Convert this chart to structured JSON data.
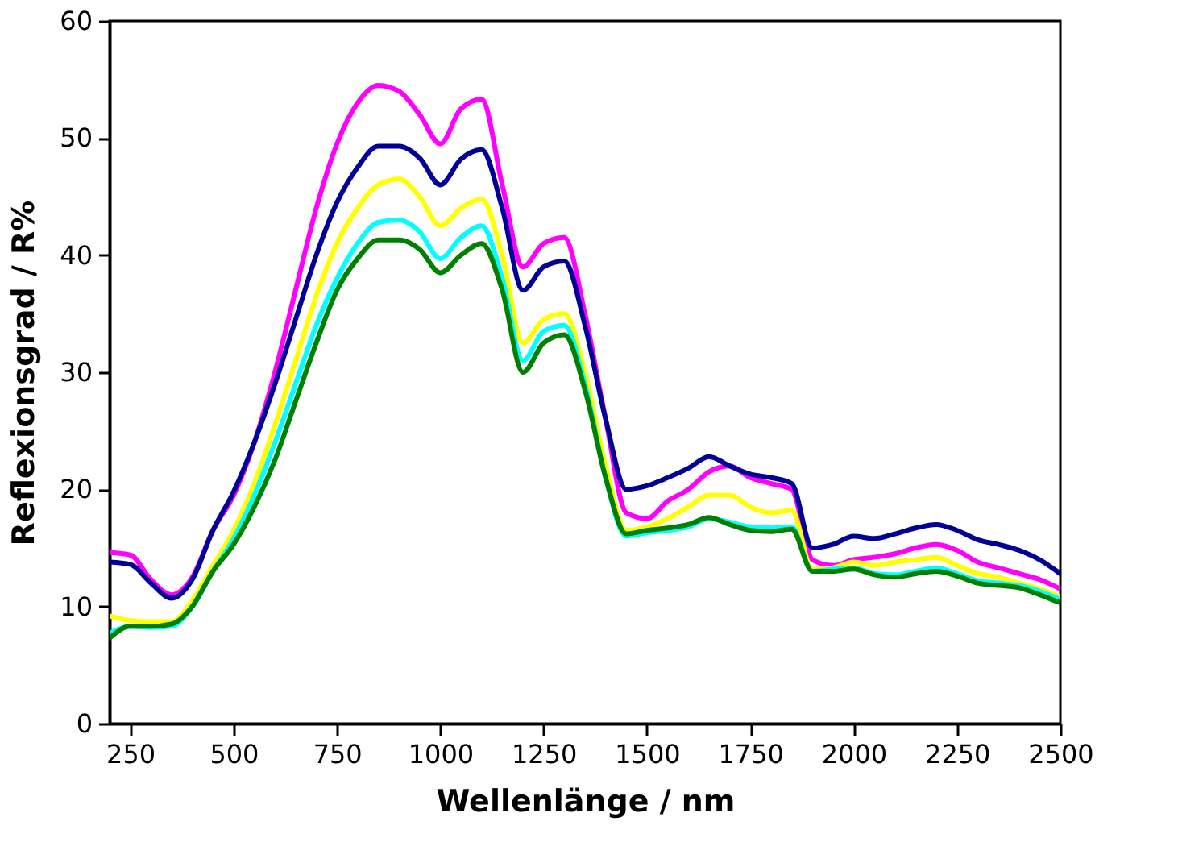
{
  "chart_data": {
    "type": "line",
    "xlabel": "Wellenlänge / nm",
    "ylabel": "Reflexionsgrad / R%",
    "x": [
      200,
      250,
      300,
      350,
      400,
      450,
      500,
      550,
      600,
      650,
      700,
      750,
      800,
      850,
      900,
      950,
      1000,
      1050,
      1100,
      1150,
      1200,
      1250,
      1300,
      1350,
      1400,
      1450,
      1500,
      1550,
      1600,
      1650,
      1700,
      1750,
      1800,
      1850,
      1900,
      1950,
      2000,
      2050,
      2100,
      2150,
      2200,
      2250,
      2300,
      2350,
      2400,
      2450,
      2500
    ],
    "series": [
      {
        "color": "#ff00ff",
        "values": [
          14.6,
          14.4,
          12.3,
          11.0,
          12.5,
          16.5,
          19.5,
          24,
          30,
          37,
          44,
          49.5,
          53,
          54.5,
          54,
          52,
          49.5,
          52.5,
          53.3,
          46,
          39,
          41,
          41.5,
          35,
          26,
          18,
          17.5,
          19,
          20,
          21.5,
          22,
          21,
          20.5,
          20,
          14,
          13.5,
          14,
          14.2,
          14.5,
          15,
          15.3,
          14.8,
          13.8,
          13.3,
          12.8,
          12.3,
          11.5
        ]
      },
      {
        "color": "#000099",
        "values": [
          13.8,
          13.6,
          12,
          10.7,
          12.3,
          16.5,
          19.8,
          24,
          29,
          34.5,
          40,
          44.5,
          47.5,
          49.3,
          49.3,
          48.3,
          46,
          48.2,
          49,
          44,
          37,
          39,
          39.5,
          34,
          26,
          20,
          20.3,
          21,
          21.8,
          22.8,
          22,
          21.3,
          21,
          20.5,
          15,
          15.3,
          16,
          15.8,
          16.2,
          16.7,
          17,
          16.5,
          15.7,
          15.3,
          14.8,
          14,
          12.8
        ]
      },
      {
        "color": "#ffff00",
        "values": [
          9.2,
          8.8,
          8.7,
          8.7,
          10.5,
          13.5,
          16.5,
          20.5,
          25.5,
          31,
          36.5,
          41,
          44,
          46,
          46.5,
          45,
          42.5,
          44,
          44.8,
          40,
          32.5,
          34.5,
          35,
          30,
          22,
          16.5,
          16.8,
          17.5,
          18.5,
          19.5,
          19.5,
          18.5,
          18,
          18.2,
          13.2,
          13.3,
          13.8,
          13.5,
          13.8,
          14,
          14.2,
          13.5,
          12.8,
          12.5,
          12,
          11.5,
          10.8
        ]
      },
      {
        "color": "#00ffff",
        "values": [
          7.7,
          8.3,
          8.2,
          8.3,
          10,
          13,
          15.8,
          19.5,
          24,
          29,
          34,
          38,
          41,
          42.8,
          43,
          42,
          39.7,
          41.5,
          42.5,
          38,
          31,
          33.5,
          34,
          29,
          21,
          16,
          16.3,
          16.5,
          16.8,
          17.5,
          17.2,
          16.8,
          16.7,
          16.8,
          13,
          13.2,
          13.3,
          12.8,
          12.7,
          13,
          13.3,
          12.8,
          12.2,
          12,
          11.8,
          11.3,
          10.6
        ]
      },
      {
        "color": "#008000",
        "values": [
          7.3,
          8.3,
          8.3,
          8.5,
          10,
          13,
          15.3,
          18.5,
          22.5,
          27.5,
          32.5,
          37,
          39.7,
          41.3,
          41.3,
          40.5,
          38.5,
          40,
          41,
          37,
          30,
          32.5,
          33.2,
          28.5,
          21,
          16.2,
          16.5,
          16.7,
          17,
          17.6,
          17,
          16.5,
          16.4,
          16.6,
          13,
          13,
          13.2,
          12.7,
          12.5,
          12.8,
          13,
          12.6,
          12,
          11.8,
          11.6,
          11,
          10.3
        ]
      }
    ],
    "xlim": [
      200,
      2500
    ],
    "xticks": [
      250,
      500,
      750,
      1000,
      1250,
      1500,
      1750,
      2000,
      2250,
      2500
    ],
    "ylim": [
      0,
      60
    ],
    "yticks": [
      0,
      10,
      20,
      30,
      40,
      50,
      60
    ],
    "grid": false,
    "marker": "none",
    "line_style": "solid"
  }
}
